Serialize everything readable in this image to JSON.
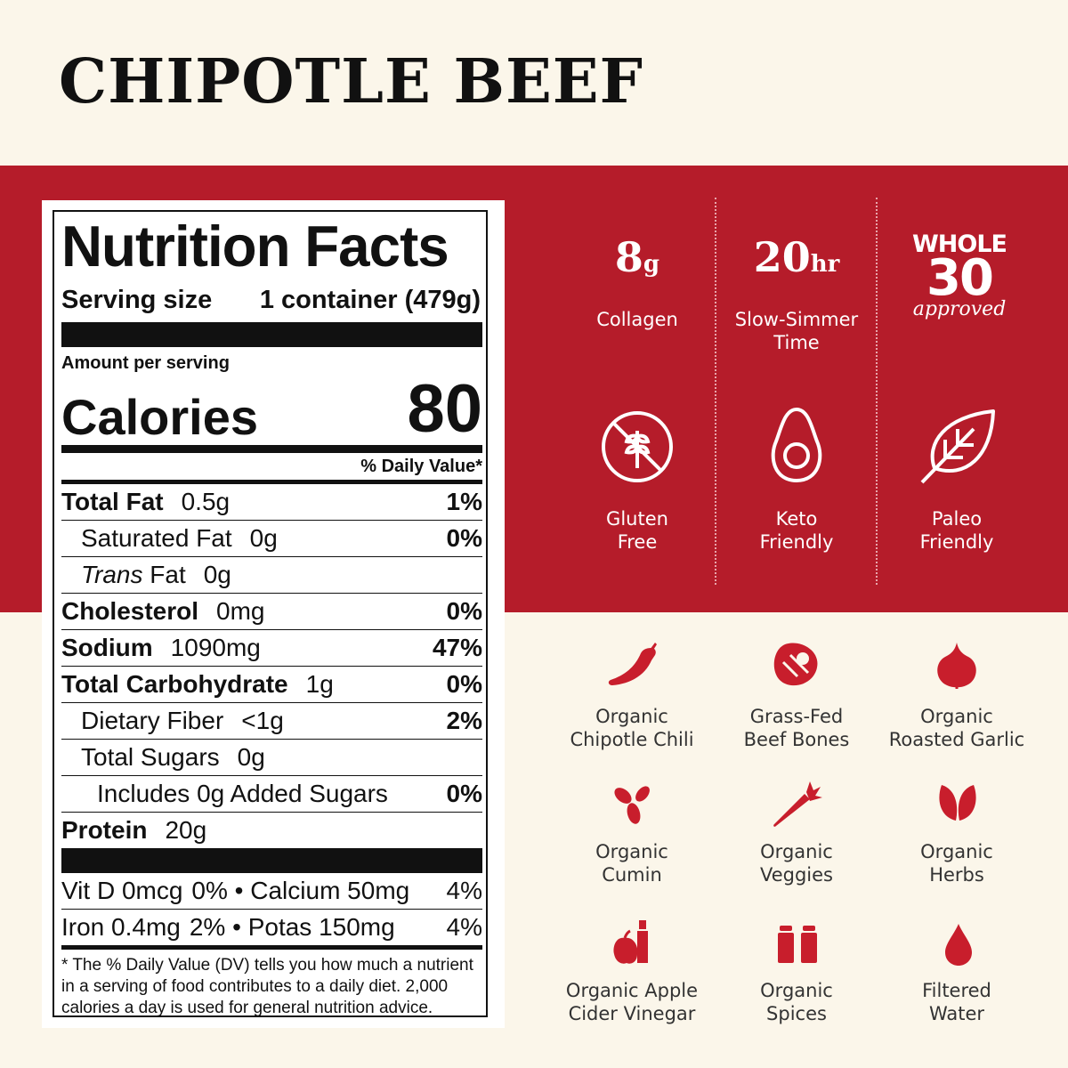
{
  "title": "CHIPOTLE BEEF",
  "nutrition": {
    "heading": "Nutrition Facts",
    "serving_label": "Serving size",
    "serving_value": "1 container (479g)",
    "amount_per_serving": "Amount per serving",
    "calories_label": "Calories",
    "calories_value": "80",
    "daily_value_header": "% Daily Value*",
    "rows": [
      {
        "name": "Total Fat",
        "amount": "0.5g",
        "dv": "1%"
      },
      {
        "name": "Saturated Fat",
        "amount": "0g",
        "dv": "0%"
      },
      {
        "name": "Trans",
        "name_suffix": " Fat",
        "amount": "0g",
        "dv": ""
      },
      {
        "name": "Cholesterol",
        "amount": "0mg",
        "dv": "0%"
      },
      {
        "name": "Sodium",
        "amount": "1090mg",
        "dv": "47%"
      },
      {
        "name": "Total Carbohydrate",
        "amount": "1g",
        "dv": "0%"
      },
      {
        "name": "Dietary Fiber",
        "amount": "<1g",
        "dv": "2%"
      },
      {
        "name": "Total Sugars",
        "amount": "0g",
        "dv": ""
      },
      {
        "name": "Includes 0g Added Sugars",
        "amount": "",
        "dv": "0%"
      },
      {
        "name": "Protein",
        "amount": "20g",
        "dv": ""
      }
    ],
    "vitamins": [
      {
        "left": "Vit D 0mcg",
        "left_pct": "0%",
        "right": "Calcium 50mg",
        "right_pct": "4%"
      },
      {
        "left": "Iron 0.4mg",
        "left_pct": "2%",
        "right": "Potas 150mg",
        "right_pct": "4%"
      }
    ],
    "separator": "•",
    "footnote": "* The % Daily Value (DV) tells you how much a nutrient in a serving of food contributes to a daily diet. 2,000 calories a day is used for general nutrition advice."
  },
  "features": {
    "collagen": {
      "value": "8",
      "unit": "g",
      "label": "Collagen"
    },
    "simmer": {
      "value": "20",
      "unit": "hr",
      "label_line1": "Slow-Simmer",
      "label_line2": "Time"
    },
    "whole30": {
      "line1": "WHOLE",
      "line2": "30",
      "line3": "approved"
    },
    "gluten_free": {
      "line1": "Gluten",
      "line2": "Free"
    },
    "keto": {
      "line1": "Keto",
      "line2": "Friendly"
    },
    "paleo": {
      "line1": "Paleo",
      "line2": "Friendly"
    }
  },
  "ingredients": [
    {
      "line1": "Organic",
      "line2": "Chipotle Chili",
      "icon": "chili-pepper-icon"
    },
    {
      "line1": "Grass-Fed",
      "line2": "Beef Bones",
      "icon": "steak-icon"
    },
    {
      "line1": "Organic",
      "line2": "Roasted Garlic",
      "icon": "garlic-icon"
    },
    {
      "line1": "Organic",
      "line2": "Cumin",
      "icon": "cumin-seeds-icon"
    },
    {
      "line1": "Organic",
      "line2": "Veggies",
      "icon": "carrot-icon"
    },
    {
      "line1": "Organic",
      "line2": "Herbs",
      "icon": "herb-leaves-icon"
    },
    {
      "line1": "Organic Apple",
      "line2": "Cider Vinegar",
      "icon": "apple-vinegar-icon"
    },
    {
      "line1": "Organic",
      "line2": "Spices",
      "icon": "spice-shakers-icon"
    },
    {
      "line1": "Filtered",
      "line2": "Water",
      "icon": "water-drop-icon"
    }
  ],
  "colors": {
    "brand_red": "#b51c2a",
    "cream": "#fbf6ea",
    "icon_red": "#c81e2c"
  }
}
